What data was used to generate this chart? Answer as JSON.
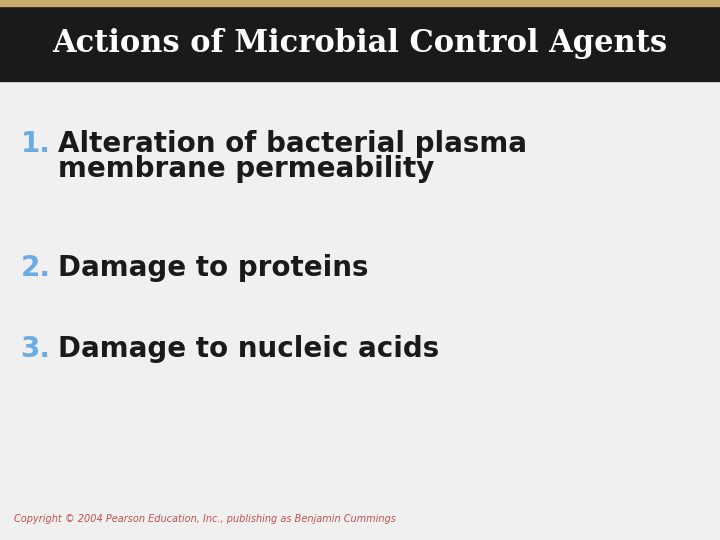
{
  "title": "Actions of Microbial Control Agents",
  "title_color": "#ffffff",
  "title_bg_color": "#1a1a1a",
  "title_stripe_color": "#c8a96e",
  "body_bg_color": "#f0f0f0",
  "number_color": "#6aade4",
  "text_color": "#1a1a1a",
  "copyright_text": "Copyright © 2004 Pearson Education, Inc., publishing as Benjamin Cummings",
  "copyright_color": "#c0504d",
  "items": [
    {
      "number": "1.",
      "line1": "Alteration of bacterial plasma",
      "line2": "membrane permeability"
    },
    {
      "number": "2.",
      "line1": "Damage to proteins",
      "line2": null
    },
    {
      "number": "3.",
      "line1": "Damage to nucleic acids",
      "line2": null
    }
  ],
  "title_fontsize": 22,
  "item_fontsize": 20,
  "copyright_fontsize": 7,
  "fig_width": 7.2,
  "fig_height": 5.4,
  "dpi": 100
}
